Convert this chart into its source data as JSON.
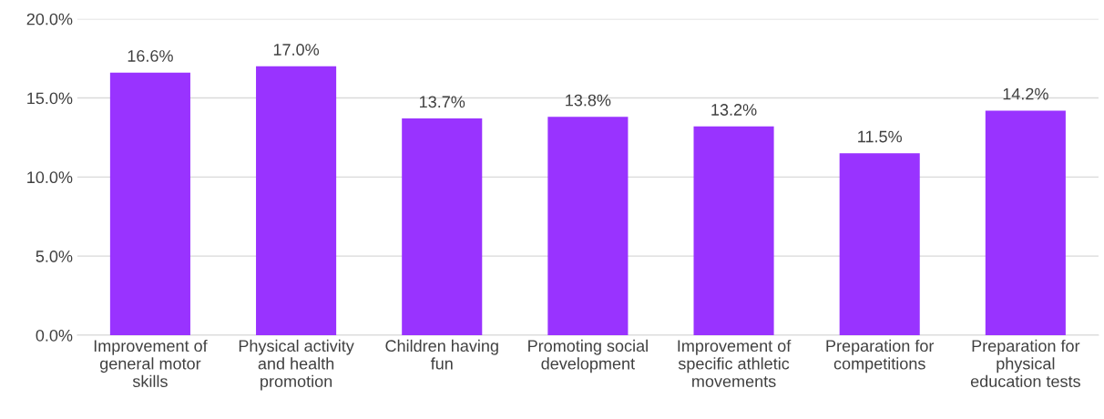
{
  "chart_data": {
    "type": "bar",
    "categories": [
      "Improvement of general motor skills",
      "Physical activity and health promotion",
      "Children having fun",
      "Promoting social development",
      "Improvement of specific athletic movements",
      "Preparation for competitions",
      "Preparation for physical education tests"
    ],
    "values": [
      16.6,
      17.0,
      13.7,
      13.8,
      13.2,
      11.5,
      14.2
    ],
    "color": "#9933ff",
    "value_labels": [
      "16.6%",
      "17.0%",
      "13.7%",
      "13.8%",
      "13.2%",
      "11.5%",
      "14.2%"
    ],
    "ylim": [
      0,
      20
    ],
    "yticks": [
      {
        "value": 0,
        "label": "0.0%"
      },
      {
        "value": 5,
        "label": "5.0%"
      },
      {
        "value": 10,
        "label": "10.0%"
      },
      {
        "value": 15,
        "label": "15.0%"
      },
      {
        "value": 20,
        "label": "20.0%"
      }
    ],
    "grid": "y"
  }
}
